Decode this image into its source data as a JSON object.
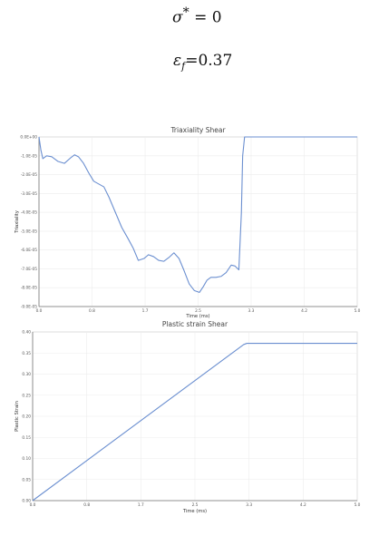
{
  "equations": {
    "sigma_star": "σ* = 0",
    "sigma_symbol": "σ",
    "sigma_sup": "*",
    "sigma_rhs": " = 0",
    "eps_symbol": "ε",
    "eps_sub": "f",
    "eps_rhs": "=0.37"
  },
  "chart_data": [
    {
      "type": "line",
      "title": "Triaxiality Shear",
      "xlabel": "Time (ms)",
      "ylabel": "Triaxiality",
      "xlim": [
        0.0,
        5.0
      ],
      "ylim": [
        -9e-05,
        0.0
      ],
      "grid": true,
      "line_color": "#6b8fd0",
      "x_tick_labels": [
        "0.0",
        "0.8",
        "1.7",
        "2.5",
        "3.3",
        "4.2",
        "5.0"
      ],
      "x_tick_values": [
        0.0,
        0.833,
        1.667,
        2.5,
        3.333,
        4.167,
        5.0
      ],
      "y_tick_labels": [
        "0.0E+00",
        "-1.0E-05",
        "-2.0E-05",
        "-3.0E-05",
        "-4.0E-05",
        "-5.0E-05",
        "-6.0E-05",
        "-7.0E-05",
        "-8.0E-05",
        "-9.0E-05"
      ],
      "y_tick_values": [
        0,
        -1e-05,
        -2e-05,
        -3e-05,
        -4e-05,
        -5e-05,
        -6e-05,
        -7e-05,
        -8e-05,
        -9e-05
      ],
      "series": [
        {
          "x": [
            0.0,
            0.03,
            0.06,
            0.12,
            0.2,
            0.3,
            0.4,
            0.5,
            0.56,
            0.62,
            0.7,
            0.78,
            0.86,
            0.94,
            1.02,
            1.1,
            1.2,
            1.3,
            1.4,
            1.48,
            1.56,
            1.65,
            1.72,
            1.8,
            1.88,
            1.96,
            2.04,
            2.12,
            2.2,
            2.28,
            2.36,
            2.44,
            2.52,
            2.58,
            2.64,
            2.7,
            2.78,
            2.86,
            2.94,
            3.02,
            3.08,
            3.14,
            3.18,
            3.2,
            3.23,
            3.27,
            3.3,
            3.5,
            4.0,
            4.5,
            5.0
          ],
          "y": [
            0.0,
            -7e-06,
            -1.15e-05,
            -1e-05,
            -1.05e-05,
            -1.3e-05,
            -1.4e-05,
            -1.1e-05,
            -9.5e-06,
            -1.05e-05,
            -1.4e-05,
            -1.9e-05,
            -2.35e-05,
            -2.5e-05,
            -2.65e-05,
            -3.2e-05,
            -4e-05,
            -4.8e-05,
            -5.4e-05,
            -5.9e-05,
            -6.55e-05,
            -6.45e-05,
            -6.25e-05,
            -6.35e-05,
            -6.55e-05,
            -6.6e-05,
            -6.4e-05,
            -6.15e-05,
            -6.45e-05,
            -7.1e-05,
            -7.8e-05,
            -8.15e-05,
            -8.25e-05,
            -7.95e-05,
            -7.6e-05,
            -7.45e-05,
            -7.45e-05,
            -7.4e-05,
            -7.2e-05,
            -6.8e-05,
            -6.85e-05,
            -7.05e-05,
            -4e-05,
            -1e-05,
            0.0,
            0.0,
            0.0,
            0.0,
            0.0,
            0.0,
            0.0
          ]
        }
      ]
    },
    {
      "type": "line",
      "title": "Plastic strain Shear",
      "xlabel": "Time (ms)",
      "ylabel": "Plastic Strain",
      "xlim": [
        0.0,
        5.0
      ],
      "ylim": [
        0.0,
        0.4
      ],
      "grid": true,
      "line_color": "#6b8fd0",
      "x_tick_labels": [
        "0.0",
        "0.8",
        "1.7",
        "2.5",
        "3.3",
        "4.2",
        "5.0"
      ],
      "x_tick_values": [
        0.0,
        0.833,
        1.667,
        2.5,
        3.333,
        4.167,
        5.0
      ],
      "y_tick_labels": [
        "0.00",
        "0.05",
        "0.10",
        "0.15",
        "0.20",
        "0.25",
        "0.30",
        "0.35",
        "0.40"
      ],
      "y_tick_values": [
        0.0,
        0.05,
        0.1,
        0.15,
        0.2,
        0.25,
        0.3,
        0.35,
        0.4
      ],
      "series": [
        {
          "x": [
            0.0,
            3.25,
            3.3,
            5.0
          ],
          "y": [
            0.0,
            0.37,
            0.373,
            0.373
          ]
        }
      ]
    }
  ]
}
